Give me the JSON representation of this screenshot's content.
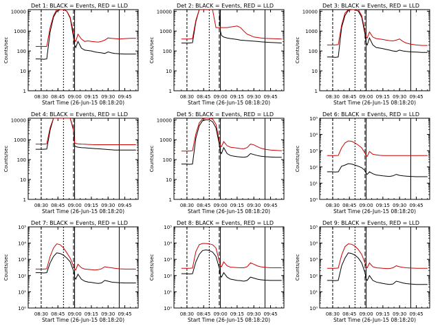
{
  "figure": {
    "xlabel": "Start Time (26-Jun-15 08:18:20)",
    "ylabel": "Counts/sec",
    "x_ticks": [
      "08:30",
      "08:45",
      "09:00",
      "09:15",
      "09:30",
      "09:45"
    ],
    "y_ticks_plain": [
      "1",
      "10",
      "100",
      "1000",
      "10000"
    ],
    "y_ticks_sci": [
      "10⁰",
      "10¹",
      "10²",
      "10³",
      "10⁴",
      "10⁵"
    ],
    "colors": {
      "events": "#000000",
      "lld": "#cc0000"
    }
  },
  "chart_data": [
    {
      "type": "line",
      "title": "Det 1: BLACK = Events, RED = LLD",
      "ylabel": "Counts/sec",
      "xlabel": "Start Time (26-Jun-15 08:18:20)",
      "yscale": "log",
      "ylim": [
        1,
        12000
      ],
      "xlim": [
        "08:18:20",
        "09:57:00"
      ],
      "ytick_style": "plain",
      "x": [
        "08:25",
        "08:30",
        "08:32",
        "08:35",
        "08:38",
        "08:41",
        "08:44",
        "08:47",
        "08:50",
        "08:53",
        "08:56",
        "08:59",
        "09:00",
        "09:01",
        "09:03",
        "09:06",
        "09:09",
        "09:12",
        "09:15",
        "09:18",
        "09:21",
        "09:24",
        "09:27",
        "09:30",
        "09:33",
        "09:36",
        "09:40",
        "09:45",
        "09:50",
        "09:55"
      ],
      "series": [
        {
          "name": "Events",
          "values": [
            40,
            40,
            38,
            40,
            900,
            5000,
            10000,
            12000,
            12000,
            10000,
            4500,
            500,
            200,
            150,
            300,
            140,
            110,
            105,
            100,
            90,
            85,
            80,
            75,
            90,
            80,
            75,
            72,
            70,
            70,
            70
          ]
        },
        {
          "name": "LLD",
          "values": [
            170,
            170,
            170,
            170,
            1500,
            6000,
            12000,
            12000,
            12000,
            10000,
            5000,
            800,
            350,
            300,
            700,
            400,
            300,
            320,
            300,
            290,
            280,
            300,
            350,
            450,
            430,
            420,
            400,
            420,
            430,
            430
          ]
        }
      ]
    },
    {
      "type": "line",
      "title": "Det 2: BLACK = Events, RED = LLD",
      "ylabel": "Counts/sec",
      "xlabel": "Start Time (26-Jun-15 08:18:20)",
      "yscale": "log",
      "ylim": [
        1,
        12000
      ],
      "xlim": [
        "08:18:20",
        "09:57:00"
      ],
      "ytick_style": "plain",
      "x": [
        "08:25",
        "08:30",
        "08:32",
        "08:35",
        "08:38",
        "08:41",
        "08:44",
        "08:47",
        "08:50",
        "08:53",
        "08:56",
        "08:59",
        "09:00",
        "09:01",
        "09:03",
        "09:06",
        "09:09",
        "09:12",
        "09:15",
        "09:18",
        "09:21",
        "09:24",
        "09:27",
        "09:30",
        "09:33",
        "09:36",
        "09:40",
        "09:45",
        "09:50",
        "09:55"
      ],
      "series": [
        {
          "name": "Events",
          "values": [
            250,
            250,
            250,
            260,
            3000,
            12000,
            12000,
            12000,
            12000,
            12000,
            12000,
            12000,
            1000,
            600,
            500,
            450,
            420,
            400,
            380,
            350,
            340,
            330,
            320,
            310,
            300,
            290,
            280,
            270,
            260,
            250
          ]
        },
        {
          "name": "LLD",
          "values": [
            400,
            400,
            400,
            420,
            3500,
            12000,
            12000,
            12000,
            12000,
            12000,
            1500,
            1500,
            1500,
            1500,
            1500,
            1500,
            1600,
            1700,
            1800,
            1500,
            1000,
            700,
            600,
            500,
            480,
            450,
            430,
            420,
            410,
            400
          ]
        }
      ]
    },
    {
      "type": "line",
      "title": "Det 3: BLACK = Events, RED = LLD",
      "ylabel": "Counts/sec",
      "xlabel": "Start Time (26-Jun-15 08:18:20)",
      "yscale": "log",
      "ylim": [
        1,
        12000
      ],
      "xlim": [
        "08:18:20",
        "09:57:00"
      ],
      "ytick_style": "plain",
      "x": [
        "08:25",
        "08:30",
        "08:32",
        "08:35",
        "08:38",
        "08:41",
        "08:44",
        "08:47",
        "08:50",
        "08:53",
        "08:56",
        "08:59",
        "09:00",
        "09:01",
        "09:03",
        "09:06",
        "09:09",
        "09:12",
        "09:15",
        "09:18",
        "09:21",
        "09:24",
        "09:27",
        "09:30",
        "09:33",
        "09:36",
        "09:40",
        "09:45",
        "09:50",
        "09:55"
      ],
      "series": [
        {
          "name": "Events",
          "values": [
            50,
            50,
            48,
            50,
            1500,
            6000,
            11000,
            12000,
            12000,
            10000,
            5000,
            700,
            250,
            200,
            450,
            200,
            150,
            140,
            130,
            120,
            110,
            100,
            95,
            110,
            100,
            95,
            90,
            88,
            85,
            85
          ]
        },
        {
          "name": "LLD",
          "values": [
            200,
            200,
            200,
            210,
            2000,
            8000,
            12000,
            12000,
            12000,
            12000,
            6000,
            1000,
            500,
            450,
            900,
            500,
            420,
            400,
            380,
            350,
            330,
            320,
            350,
            400,
            300,
            250,
            220,
            200,
            190,
            190
          ]
        }
      ]
    },
    {
      "type": "line",
      "title": "Det 4: BLACK = Events, RED = LLD",
      "ylabel": "Counts/sec",
      "xlabel": "Start Time (26-Jun-15 08:18:20)",
      "yscale": "log",
      "ylim": [
        1,
        12000
      ],
      "xlim": [
        "08:18:20",
        "09:57:00"
      ],
      "ytick_style": "plain",
      "x": [
        "08:25",
        "08:30",
        "08:32",
        "08:35",
        "08:38",
        "08:41",
        "08:44",
        "08:47",
        "08:50",
        "08:53",
        "08:56",
        "08:59",
        "09:00",
        "09:01",
        "09:03",
        "09:06",
        "09:09",
        "09:12",
        "09:15",
        "09:18",
        "09:21",
        "09:24",
        "09:27",
        "09:30",
        "09:33",
        "09:36",
        "09:40",
        "09:45",
        "09:50",
        "09:55"
      ],
      "series": [
        {
          "name": "Events",
          "values": [
            330,
            330,
            330,
            340,
            3000,
            12000,
            12000,
            12000,
            12000,
            12000,
            12000,
            3000,
            500,
            450,
            420,
            400,
            390,
            380,
            370,
            360,
            350,
            340,
            330,
            320,
            310,
            300,
            300,
            300,
            300,
            300
          ]
        },
        {
          "name": "LLD",
          "values": [
            600,
            600,
            600,
            620,
            4000,
            12000,
            12000,
            12000,
            12000,
            12000,
            12000,
            3500,
            700,
            650,
            620,
            600,
            590,
            580,
            570,
            560,
            560,
            560,
            560,
            560,
            560,
            560,
            560,
            560,
            560,
            560
          ]
        }
      ]
    },
    {
      "type": "line",
      "title": "Det 5: BLACK = Events, RED = LLD",
      "ylabel": "Counts/sec",
      "xlabel": "Start Time (26-Jun-15 08:18:20)",
      "yscale": "log",
      "ylim": [
        1,
        12000
      ],
      "xlim": [
        "08:18:20",
        "09:57:00"
      ],
      "ytick_style": "plain",
      "x": [
        "08:25",
        "08:30",
        "08:32",
        "08:35",
        "08:38",
        "08:41",
        "08:44",
        "08:47",
        "08:50",
        "08:53",
        "08:56",
        "08:59",
        "09:00",
        "09:01",
        "09:03",
        "09:06",
        "09:09",
        "09:12",
        "09:15",
        "09:18",
        "09:21",
        "09:24",
        "09:27",
        "09:30",
        "09:33",
        "09:36",
        "09:40",
        "09:45",
        "09:50",
        "09:55"
      ],
      "series": [
        {
          "name": "Events",
          "values": [
            60,
            60,
            58,
            60,
            1200,
            5000,
            9000,
            10000,
            10000,
            8000,
            4000,
            600,
            250,
            200,
            400,
            200,
            160,
            150,
            140,
            135,
            130,
            140,
            200,
            180,
            160,
            150,
            140,
            135,
            130,
            130
          ]
        },
        {
          "name": "LLD",
          "values": [
            270,
            270,
            270,
            280,
            2000,
            7000,
            11000,
            12000,
            12000,
            11000,
            6000,
            900,
            500,
            450,
            800,
            500,
            420,
            400,
            380,
            360,
            350,
            400,
            600,
            550,
            450,
            380,
            330,
            300,
            290,
            280
          ]
        }
      ]
    },
    {
      "type": "line",
      "title": "Det 6: BLACK = Events, RED = LLD",
      "ylabel": "Counts/sec",
      "xlabel": "Start Time (26-Jun-15 08:18:20)",
      "yscale": "log",
      "ylim": [
        1,
        100000
      ],
      "xlim": [
        "08:18:20",
        "09:57:00"
      ],
      "ytick_style": "sci",
      "x": [
        "08:25",
        "08:30",
        "08:32",
        "08:35",
        "08:38",
        "08:41",
        "08:44",
        "08:47",
        "08:50",
        "08:53",
        "08:56",
        "08:59",
        "09:00",
        "09:01",
        "09:03",
        "09:06",
        "09:09",
        "09:12",
        "09:15",
        "09:18",
        "09:21",
        "09:24",
        "09:27",
        "09:30",
        "09:33",
        "09:36",
        "09:40",
        "09:45",
        "09:50",
        "09:55"
      ],
      "series": [
        {
          "name": "Events",
          "values": [
            50,
            50,
            48,
            50,
            110,
            130,
            160,
            150,
            130,
            110,
            90,
            60,
            40,
            35,
            50,
            38,
            32,
            30,
            28,
            27,
            26,
            28,
            35,
            30,
            28,
            27,
            26,
            25,
            25,
            25
          ]
        },
        {
          "name": "LLD",
          "values": [
            500,
            500,
            500,
            510,
            1500,
            3000,
            4000,
            3800,
            3000,
            2200,
            1500,
            700,
            500,
            450,
            900,
            600,
            550,
            520,
            500,
            500,
            500,
            500,
            500,
            500,
            500,
            500,
            500,
            500,
            500,
            500
          ]
        }
      ]
    },
    {
      "type": "line",
      "title": "Det 7: BLACK = Events, RED = LLD",
      "ylabel": "Counts/sec",
      "xlabel": "Start Time (26-Jun-15 08:18:20)",
      "yscale": "log",
      "ylim": [
        1,
        100000
      ],
      "xlim": [
        "08:18:20",
        "09:57:00"
      ],
      "ytick_style": "sci",
      "x": [
        "08:25",
        "08:30",
        "08:32",
        "08:35",
        "08:38",
        "08:41",
        "08:44",
        "08:47",
        "08:50",
        "08:53",
        "08:56",
        "08:59",
        "09:00",
        "09:01",
        "09:03",
        "09:06",
        "09:09",
        "09:12",
        "09:15",
        "09:18",
        "09:21",
        "09:24",
        "09:27",
        "09:30",
        "09:33",
        "09:36",
        "09:40",
        "09:45",
        "09:50",
        "09:55"
      ],
      "series": [
        {
          "name": "Events",
          "values": [
            150,
            150,
            145,
            150,
            600,
            1500,
            2500,
            2300,
            1800,
            1200,
            700,
            200,
            80,
            60,
            120,
            60,
            45,
            40,
            38,
            35,
            33,
            35,
            50,
            45,
            40,
            38,
            36,
            35,
            35,
            35
          ]
        },
        {
          "name": "LLD",
          "values": [
            250,
            250,
            250,
            260,
            1500,
            5000,
            9000,
            8000,
            5000,
            2500,
            1200,
            400,
            250,
            220,
            500,
            300,
            250,
            240,
            230,
            220,
            230,
            260,
            350,
            320,
            300,
            280,
            260,
            250,
            250,
            250
          ]
        }
      ]
    },
    {
      "type": "line",
      "title": "Det 8: BLACK = Events, RED = LLD",
      "ylabel": "Counts/sec",
      "xlabel": "Start Time (26-Jun-15 08:18:20)",
      "yscale": "log",
      "ylim": [
        1,
        100000
      ],
      "xlim": [
        "08:18:20",
        "09:57:00"
      ],
      "ytick_style": "sci",
      "x": [
        "08:25",
        "08:30",
        "08:32",
        "08:35",
        "08:38",
        "08:41",
        "08:44",
        "08:47",
        "08:50",
        "08:53",
        "08:56",
        "08:59",
        "09:00",
        "09:01",
        "09:03",
        "09:06",
        "09:09",
        "09:12",
        "09:15",
        "09:18",
        "09:21",
        "09:24",
        "09:27",
        "09:30",
        "09:33",
        "09:36",
        "09:40",
        "09:45",
        "09:50",
        "09:55"
      ],
      "series": [
        {
          "name": "Events",
          "values": [
            130,
            130,
            125,
            130,
            700,
            2000,
            3500,
            3800,
            3500,
            2800,
            1500,
            300,
            100,
            80,
            150,
            80,
            60,
            55,
            50,
            48,
            45,
            50,
            80,
            70,
            60,
            55,
            52,
            50,
            50,
            50
          ]
        },
        {
          "name": "LLD",
          "values": [
            280,
            280,
            280,
            290,
            3000,
            8000,
            9500,
            9500,
            9000,
            8000,
            5000,
            800,
            400,
            350,
            700,
            400,
            330,
            320,
            310,
            300,
            300,
            350,
            600,
            500,
            400,
            350,
            320,
            300,
            300,
            300
          ]
        }
      ]
    },
    {
      "type": "line",
      "title": "Det 9: BLACK = Events, RED = LLD",
      "ylabel": "Counts/sec",
      "xlabel": "Start Time (26-Jun-15 08:18:20)",
      "yscale": "log",
      "ylim": [
        1,
        100000
      ],
      "xlim": [
        "08:18:20",
        "09:57:00"
      ],
      "ytick_style": "sci",
      "x": [
        "08:25",
        "08:30",
        "08:32",
        "08:35",
        "08:38",
        "08:41",
        "08:44",
        "08:47",
        "08:50",
        "08:53",
        "08:56",
        "08:59",
        "09:00",
        "09:01",
        "09:03",
        "09:06",
        "09:09",
        "09:12",
        "09:15",
        "09:18",
        "09:21",
        "09:24",
        "09:27",
        "09:30",
        "09:33",
        "09:36",
        "09:40",
        "09:45",
        "09:50",
        "09:55"
      ],
      "series": [
        {
          "name": "Events",
          "values": [
            50,
            50,
            48,
            50,
            400,
            1200,
            2500,
            2300,
            1800,
            1200,
            600,
            150,
            60,
            50,
            100,
            50,
            40,
            36,
            33,
            30,
            28,
            30,
            45,
            40,
            35,
            32,
            30,
            28,
            28,
            28
          ]
        },
        {
          "name": "LLD",
          "values": [
            280,
            280,
            280,
            290,
            1800,
            6000,
            9000,
            8500,
            6500,
            4000,
            2000,
            600,
            350,
            300,
            600,
            350,
            300,
            290,
            280,
            270,
            270,
            300,
            400,
            350,
            320,
            300,
            290,
            280,
            280,
            280
          ]
        }
      ]
    }
  ]
}
